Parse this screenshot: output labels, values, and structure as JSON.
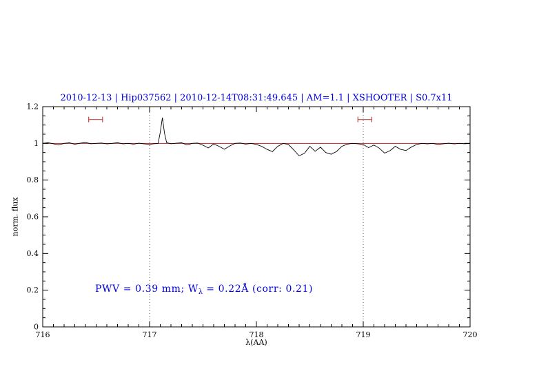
{
  "chart_data": {
    "type": "line",
    "title": "2010-12-13 | Hip037562 | 2010-12-14T08:31:49.645 | AM=1.1 | XSHOOTER | S0.7x11",
    "xlabel": "λ(AA)",
    "ylabel": "norm. flux",
    "xlim": [
      716,
      720
    ],
    "ylim": [
      0,
      1.2
    ],
    "xticks": [
      716,
      717,
      718,
      719,
      720
    ],
    "xtick_labels": [
      "716",
      "717",
      "718",
      "719",
      "720"
    ],
    "yticks": [
      0,
      0.2,
      0.4,
      0.6,
      0.8,
      1,
      1.2
    ],
    "ytick_labels": [
      "0",
      "0.2",
      "0.4",
      "0.6",
      "0.8",
      "1",
      "1.2"
    ],
    "x_minor_step": 0.1,
    "y_minor_step": 0.05,
    "grid": false,
    "legend": "none",
    "vlines": [
      717,
      719
    ],
    "annotation": {
      "pre": "PWV = 0.39 mm; W",
      "sub": "λ",
      "post": " = 0.22Å (corr: 0.21)"
    },
    "markers": [
      {
        "x1": 716.43,
        "x2": 716.56,
        "y": 1.13
      },
      {
        "x1": 718.95,
        "x2": 719.08,
        "y": 1.13
      }
    ],
    "colors": {
      "title": "#0000dd",
      "annotation": "#0000dd",
      "spectrum": "#000000",
      "continuum": "#bb2222",
      "marker": "#cc4444",
      "vline": "#555555",
      "frame": "#000000"
    },
    "series": [
      {
        "name": "spectrum",
        "color": "#000000",
        "x": [
          716.0,
          716.05,
          716.1,
          716.15,
          716.2,
          716.25,
          716.3,
          716.35,
          716.4,
          716.45,
          716.5,
          716.55,
          716.6,
          716.65,
          716.7,
          716.75,
          716.8,
          716.85,
          716.9,
          716.95,
          717.0,
          717.04,
          717.08,
          717.1,
          717.12,
          717.14,
          717.16,
          717.2,
          717.25,
          717.3,
          717.35,
          717.4,
          717.45,
          717.5,
          717.55,
          717.6,
          717.65,
          717.7,
          717.75,
          717.8,
          717.85,
          717.9,
          717.95,
          718.0,
          718.05,
          718.1,
          718.15,
          718.2,
          718.25,
          718.3,
          718.35,
          718.4,
          718.45,
          718.5,
          718.55,
          718.6,
          718.65,
          718.7,
          718.75,
          718.8,
          718.85,
          718.9,
          718.95,
          719.0,
          719.05,
          719.1,
          719.15,
          719.2,
          719.25,
          719.3,
          719.35,
          719.4,
          719.45,
          719.5,
          719.55,
          719.6,
          719.65,
          719.7,
          719.75,
          719.8,
          719.85,
          719.9,
          719.95,
          720.0
        ],
        "y": [
          1.0,
          1.004,
          0.998,
          0.991,
          1.0,
          1.003,
          0.995,
          1.001,
          1.005,
          0.998,
          1.0,
          1.002,
          0.997,
          1.0,
          1.004,
          0.997,
          1.0,
          0.996,
          1.001,
          0.997,
          0.995,
          0.998,
          1.0,
          1.06,
          1.14,
          1.055,
          1.004,
          0.998,
          1.001,
          1.003,
          0.992,
          1.0,
          1.002,
          0.99,
          0.975,
          0.997,
          0.984,
          0.968,
          0.986,
          1.0,
          1.002,
          0.996,
          1.0,
          0.994,
          0.984,
          0.967,
          0.955,
          0.984,
          1.0,
          0.994,
          0.964,
          0.932,
          0.946,
          0.984,
          0.957,
          0.979,
          0.95,
          0.941,
          0.956,
          0.984,
          0.996,
          1.0,
          0.998,
          0.994,
          0.977,
          0.991,
          0.974,
          0.947,
          0.96,
          0.984,
          0.967,
          0.961,
          0.98,
          0.994,
          1.0,
          0.997,
          1.0,
          0.994,
          0.998,
          1.001,
          0.997,
          1.0,
          0.998,
          1.0
        ]
      },
      {
        "name": "continuum fit",
        "color": "#bb2222",
        "x": [
          716,
          720
        ],
        "y": [
          1,
          1
        ]
      }
    ]
  }
}
